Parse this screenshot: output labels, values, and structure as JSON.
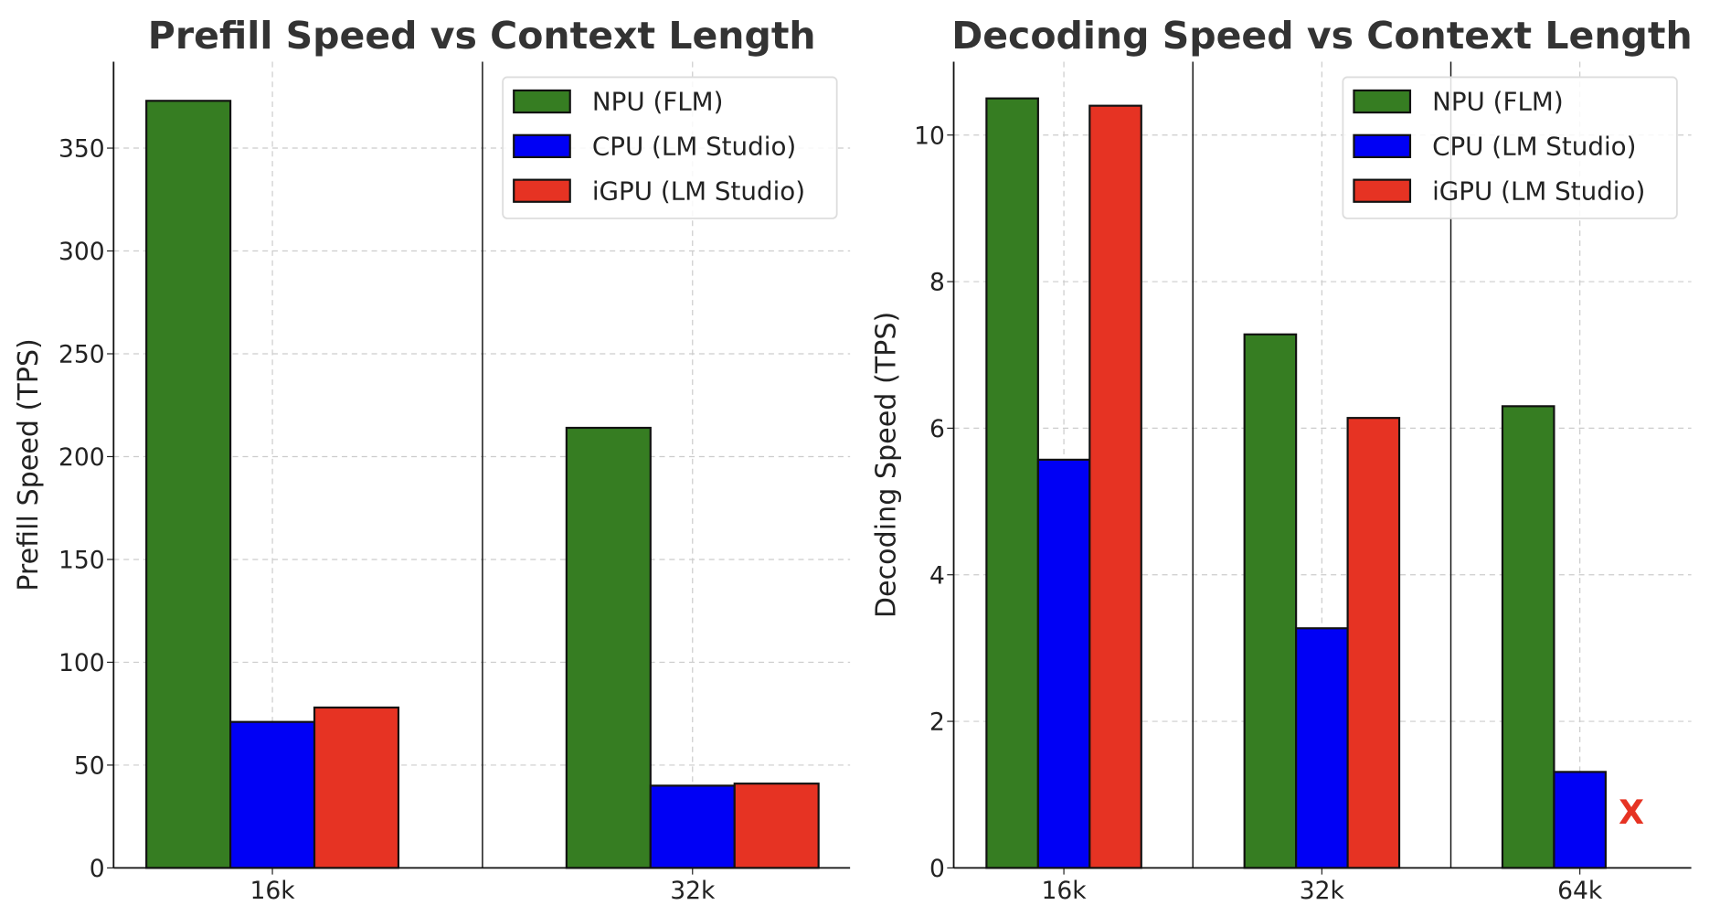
{
  "chart_data": [
    {
      "type": "bar",
      "title": "Prefill Speed vs Context Length",
      "xlabel": "",
      "ylabel": "Prefill Speed (TPS)",
      "categories": [
        "16k",
        "32k"
      ],
      "ylim": [
        0,
        392
      ],
      "yticks": [
        0,
        50,
        100,
        150,
        200,
        250,
        300,
        350
      ],
      "grid": true,
      "legend": "top-right",
      "series": [
        {
          "name": "NPU (FLM)",
          "color": "#367d22",
          "values": [
            373,
            214
          ]
        },
        {
          "name": "CPU (LM Studio)",
          "color": "#0000f5",
          "values": [
            71,
            40
          ]
        },
        {
          "name": "iGPU (LM Studio)",
          "color": "#e63323",
          "values": [
            78,
            41
          ]
        }
      ]
    },
    {
      "type": "bar",
      "title": "Decoding Speed vs Context Length",
      "xlabel": "",
      "ylabel": "Decoding Speed (TPS)",
      "categories": [
        "16k",
        "32k",
        "64k"
      ],
      "ylim": [
        0,
        11
      ],
      "yticks": [
        0,
        2,
        4,
        6,
        8,
        10
      ],
      "grid": true,
      "legend": "top-right",
      "series": [
        {
          "name": "NPU (FLM)",
          "color": "#367d22",
          "values": [
            10.5,
            7.28,
            6.3
          ]
        },
        {
          "name": "CPU (LM Studio)",
          "color": "#0000f5",
          "values": [
            5.57,
            3.27,
            1.31
          ]
        },
        {
          "name": "iGPU (LM Studio)",
          "color": "#e63323",
          "values": [
            10.4,
            6.14,
            null
          ]
        }
      ],
      "annotations": [
        {
          "text": "X",
          "category": "64k",
          "series": "iGPU (LM Studio)",
          "color": "#e63323"
        }
      ]
    }
  ]
}
